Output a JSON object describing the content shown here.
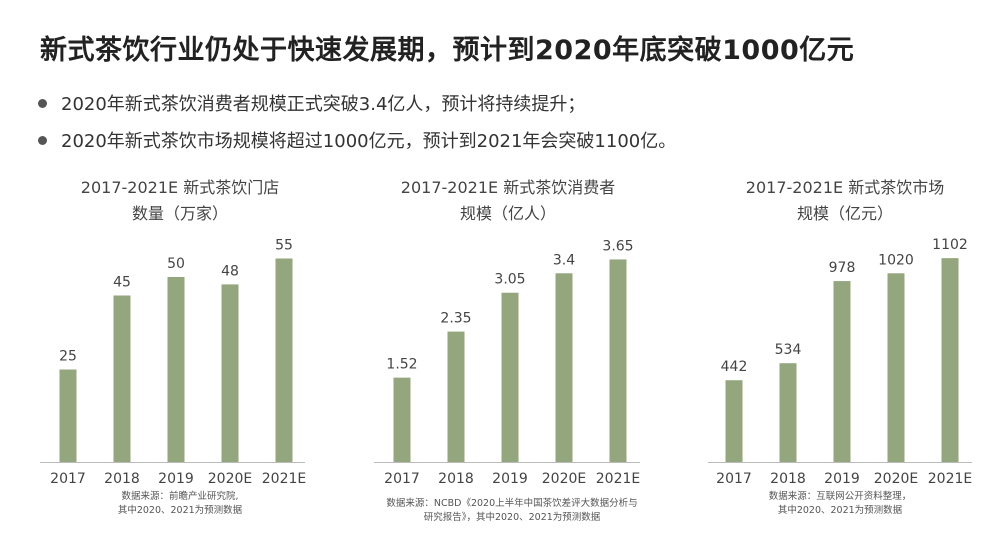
{
  "title": "新式茶饮行业仍处于快速发展期，预计到2020年底突破1000亿元",
  "bullets": [
    "2020年新式茶饮消费者规模正式突破3.4亿人，预计将持续提升；",
    "2020年新式茶饮市场规模将超过1000亿元，预计到2021年会突破1100亿。"
  ],
  "colors": {
    "bar": "#94a67e",
    "axis": "#bbbbbb",
    "text": "#444444"
  },
  "chart_data": [
    {
      "type": "bar",
      "title_lines": [
        "2017-2021E 新式茶饮门店",
        "数量（万家）"
      ],
      "categories": [
        "2017",
        "2018",
        "2019",
        "2020E",
        "2021E"
      ],
      "values": [
        25,
        45,
        50,
        48,
        55
      ],
      "labels": [
        "25",
        "45",
        "50",
        "48",
        "55"
      ],
      "ylim": [
        0,
        60
      ],
      "source_lines": [
        "数据来源：前瞻产业研究院,",
        "其中2020、2021为预测数据"
      ]
    },
    {
      "type": "bar",
      "title_lines": [
        "2017-2021E 新式茶饮消费者",
        "规模（亿人）"
      ],
      "categories": [
        "2017",
        "2018",
        "2019",
        "2020E",
        "2021E"
      ],
      "values": [
        1.52,
        2.35,
        3.05,
        3.4,
        3.65
      ],
      "labels": [
        "1.52",
        "2.35",
        "3.05",
        "3.4",
        "3.65"
      ],
      "ylim": [
        0,
        4.0
      ],
      "source_lines": [
        "数据来源：NCBD《2020上半年中国茶饮差评大数据分析与",
        "研究报告》，其中2020、2021为预测数据"
      ]
    },
    {
      "type": "bar",
      "title_lines": [
        "2017-2021E 新式茶饮市场",
        "规模（亿元）"
      ],
      "categories": [
        "2017",
        "2018",
        "2019",
        "2020E",
        "2021E"
      ],
      "values": [
        442,
        534,
        978,
        1020,
        1102
      ],
      "labels": [
        "442",
        "534",
        "978",
        "1020",
        "1102"
      ],
      "ylim": [
        0,
        1200
      ],
      "source_lines": [
        "数据来源：互联网公开资料整理，",
        "其中2020、2021为预测数据"
      ]
    }
  ]
}
